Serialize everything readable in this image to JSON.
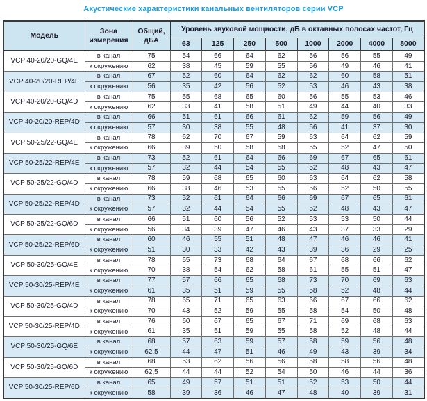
{
  "title": "Акустические характеристики канальных вентиляторов  серии VCP",
  "colors": {
    "title_text": "#1f9ed9",
    "header_bg": "#cde4f1",
    "stripe_bg": "#d7eaf6",
    "border_dark": "#383838",
    "text": "#1b1b28"
  },
  "table": {
    "header": {
      "model": "Модель",
      "zone": "Зона измерения",
      "total": "Общий, дБА",
      "spl_group": "Уровень звуковой мощности, дБ в октавных полосах частот, Гц",
      "frequencies": [
        "63",
        "125",
        "250",
        "500",
        "1000",
        "2000",
        "4000",
        "8000"
      ]
    },
    "zone_labels": [
      "в канал",
      "к окружению"
    ],
    "groups": [
      {
        "model": "VCP 40-20/20-GQ/4E",
        "shaded": false,
        "rows": [
          {
            "zone": "в канал",
            "total": "75",
            "levels": [
              "54",
              "66",
              "64",
              "62",
              "56",
              "56",
              "55",
              "49"
            ]
          },
          {
            "zone": "к окружению",
            "total": "62",
            "levels": [
              "38",
              "45",
              "59",
              "55",
              "56",
              "49",
              "46",
              "41"
            ]
          }
        ]
      },
      {
        "model": "VCP 40-20/20-REP/4E",
        "shaded": true,
        "rows": [
          {
            "zone": "в канал",
            "total": "67",
            "levels": [
              "52",
              "60",
              "64",
              "62",
              "62",
              "60",
              "58",
              "51"
            ]
          },
          {
            "zone": "к окружению",
            "total": "56",
            "levels": [
              "35",
              "42",
              "56",
              "52",
              "53",
              "46",
              "43",
              "38"
            ]
          }
        ]
      },
      {
        "model": "VCP 40-20/20-GQ/4D",
        "shaded": false,
        "rows": [
          {
            "zone": "в канал",
            "total": "75",
            "levels": [
              "55",
              "68",
              "65",
              "60",
              "56",
              "55",
              "53",
              "46"
            ]
          },
          {
            "zone": "к окружению",
            "total": "62",
            "levels": [
              "33",
              "41",
              "58",
              "51",
              "49",
              "44",
              "40",
              "33"
            ]
          }
        ]
      },
      {
        "model": "VCP 40-20/20-REP/4D",
        "shaded": true,
        "rows": [
          {
            "zone": "в канал",
            "total": "66",
            "levels": [
              "51",
              "61",
              "66",
              "61",
              "62",
              "59",
              "56",
              "49"
            ]
          },
          {
            "zone": "к окружению",
            "total": "57",
            "levels": [
              "30",
              "38",
              "55",
              "48",
              "56",
              "41",
              "37",
              "30"
            ]
          }
        ]
      },
      {
        "model": "VCP 50-25/22-GQ/4E",
        "shaded": false,
        "rows": [
          {
            "zone": "в канал",
            "total": "78",
            "levels": [
              "62",
              "70",
              "67",
              "59",
              "63",
              "64",
              "62",
              "59"
            ]
          },
          {
            "zone": "к окружению",
            "total": "66",
            "levels": [
              "39",
              "50",
              "58",
              "58",
              "55",
              "52",
              "47",
              "50"
            ]
          }
        ]
      },
      {
        "model": "VCP 50-25/22-REP/4E",
        "shaded": true,
        "rows": [
          {
            "zone": "в канал",
            "total": "73",
            "levels": [
              "52",
              "61",
              "64",
              "66",
              "69",
              "67",
              "65",
              "61"
            ]
          },
          {
            "zone": "к окружению",
            "total": "57",
            "levels": [
              "32",
              "44",
              "54",
              "55",
              "52",
              "48",
              "43",
              "47"
            ]
          }
        ]
      },
      {
        "model": "VCP 50-25/22-GQ/4D",
        "shaded": false,
        "rows": [
          {
            "zone": "в канал",
            "total": "78",
            "levels": [
              "59",
              "68",
              "65",
              "60",
              "63",
              "64",
              "62",
              "58"
            ]
          },
          {
            "zone": "к окружению",
            "total": "66",
            "levels": [
              "38",
              "46",
              "53",
              "55",
              "56",
              "52",
              "50",
              "55"
            ]
          }
        ]
      },
      {
        "model": "VCP 50-25/22-REP/4D",
        "shaded": true,
        "rows": [
          {
            "zone": "в канал",
            "total": "73",
            "levels": [
              "52",
              "61",
              "64",
              "66",
              "69",
              "67",
              "65",
              "61"
            ]
          },
          {
            "zone": "к окружению",
            "total": "57",
            "levels": [
              "32",
              "44",
              "54",
              "55",
              "52",
              "48",
              "43",
              "47"
            ]
          }
        ]
      },
      {
        "model": "VCP 50-25/22-GQ/6D",
        "shaded": false,
        "rows": [
          {
            "zone": "в канал",
            "total": "66",
            "levels": [
              "51",
              "60",
              "56",
              "52",
              "53",
              "53",
              "50",
              "44"
            ]
          },
          {
            "zone": "к окружению",
            "total": "56",
            "levels": [
              "34",
              "39",
              "47",
              "46",
              "43",
              "37",
              "33",
              "29"
            ]
          }
        ]
      },
      {
        "model": "VCP 50-25/22-REP/6D",
        "shaded": true,
        "rows": [
          {
            "zone": "в канал",
            "total": "60",
            "levels": [
              "46",
              "55",
              "51",
              "48",
              "47",
              "46",
              "46",
              "41"
            ]
          },
          {
            "zone": "к окружению",
            "total": "51",
            "levels": [
              "30",
              "33",
              "42",
              "43",
              "39",
              "36",
              "29",
              "25"
            ]
          }
        ]
      },
      {
        "model": "VCP 50-30/25-GQ/4E",
        "shaded": false,
        "rows": [
          {
            "zone": "в канал",
            "total": "78",
            "levels": [
              "65",
              "73",
              "68",
              "64",
              "67",
              "68",
              "66",
              "62"
            ]
          },
          {
            "zone": "к окружению",
            "total": "70",
            "levels": [
              "38",
              "54",
              "62",
              "58",
              "61",
              "55",
              "51",
              "47"
            ]
          }
        ]
      },
      {
        "model": "VCP 50-30/25-REP/4E",
        "shaded": true,
        "rows": [
          {
            "zone": "в канал",
            "total": "77",
            "levels": [
              "57",
              "66",
              "65",
              "68",
              "73",
              "70",
              "69",
              "63"
            ]
          },
          {
            "zone": "к окружению",
            "total": "61",
            "levels": [
              "35",
              "51",
              "59",
              "55",
              "58",
              "52",
              "48",
              "44"
            ]
          }
        ]
      },
      {
        "model": "VCP 50-30/25-GQ/4D",
        "shaded": false,
        "rows": [
          {
            "zone": "в канал",
            "total": "78",
            "levels": [
              "65",
              "71",
              "65",
              "63",
              "66",
              "67",
              "66",
              "62"
            ]
          },
          {
            "zone": "к окружению",
            "total": "70",
            "levels": [
              "43",
              "52",
              "59",
              "55",
              "58",
              "54",
              "50",
              "48"
            ]
          }
        ]
      },
      {
        "model": "VCP 50-30/25-REP/4D",
        "shaded": false,
        "rows": [
          {
            "zone": "в канал",
            "total": "76",
            "levels": [
              "60",
              "67",
              "65",
              "67",
              "71",
              "69",
              "68",
              "63"
            ]
          },
          {
            "zone": "к окружению",
            "total": "61",
            "levels": [
              "35",
              "51",
              "59",
              "55",
              "58",
              "52",
              "48",
              "44"
            ]
          }
        ]
      },
      {
        "model": "VCP 50-30/25-GQ/6E",
        "shaded": true,
        "rows": [
          {
            "zone": "в канал",
            "total": "68",
            "levels": [
              "57",
              "63",
              "59",
              "57",
              "58",
              "59",
              "56",
              "48"
            ]
          },
          {
            "zone": "к окружению",
            "total": "62,5",
            "levels": [
              "44",
              "47",
              "51",
              "46",
              "49",
              "43",
              "39",
              "34"
            ]
          }
        ]
      },
      {
        "model": "VCP 50-30/25-GQ/6D",
        "shaded": false,
        "rows": [
          {
            "zone": "в канал",
            "total": "68",
            "levels": [
              "53",
              "62",
              "56",
              "56",
              "58",
              "58",
              "56",
              "48"
            ]
          },
          {
            "zone": "к окружению",
            "total": "62,5",
            "levels": [
              "44",
              "44",
              "52",
              "54",
              "50",
              "46",
              "44",
              "36"
            ]
          }
        ]
      },
      {
        "model": "VCP 50-30/25-REP/6D",
        "shaded": true,
        "rows": [
          {
            "zone": "в канал",
            "total": "65",
            "levels": [
              "49",
              "57",
              "51",
              "51",
              "52",
              "53",
              "50",
              "44"
            ]
          },
          {
            "zone": "к окружению",
            "total": "58",
            "levels": [
              "39",
              "36",
              "46",
              "47",
              "48",
              "40",
              "39",
              "31"
            ]
          }
        ]
      }
    ]
  }
}
